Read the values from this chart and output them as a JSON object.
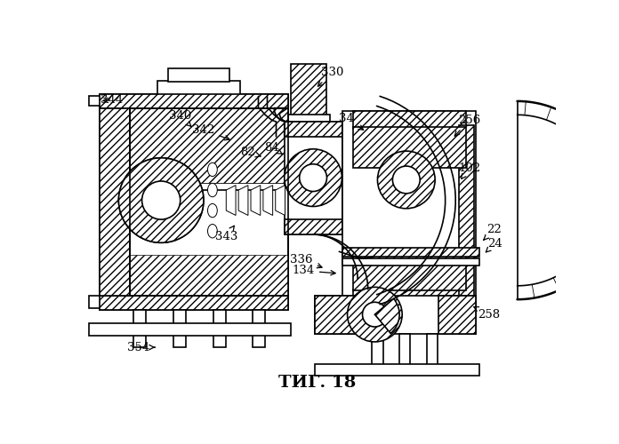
{
  "title": "ΤИГ. 18",
  "bg": "#ffffff",
  "lc": "#000000"
}
